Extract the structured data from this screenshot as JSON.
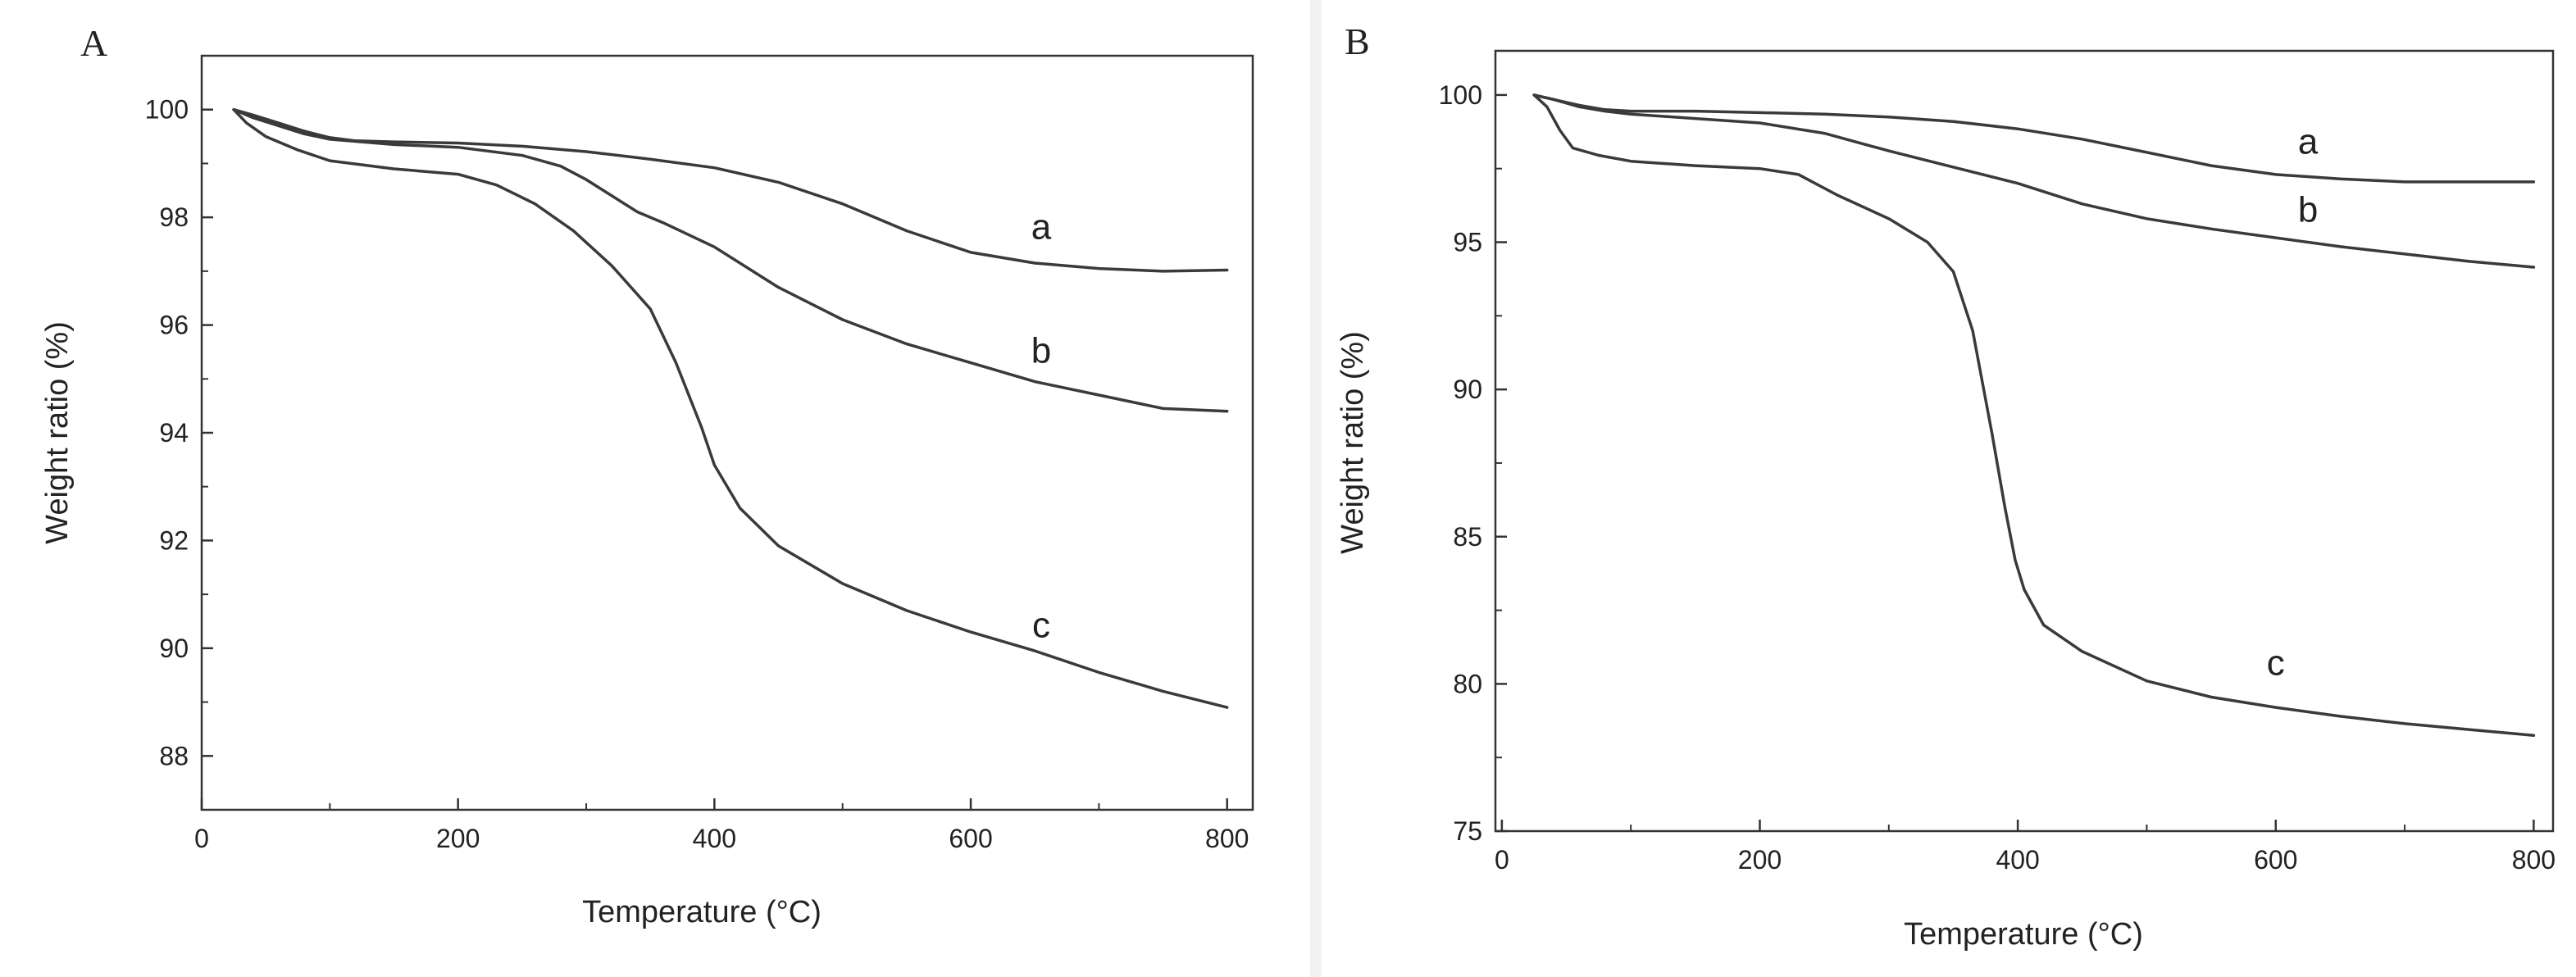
{
  "chart_data": [
    {
      "panel": "A",
      "type": "line",
      "xlabel": "Temperature (°C)",
      "ylabel": "Weight ratio (%)",
      "xlim": [
        0,
        820
      ],
      "ylim": [
        87,
        101
      ],
      "xticks": [
        0,
        200,
        400,
        600,
        800
      ],
      "yticks": [
        88,
        90,
        92,
        94,
        96,
        98,
        100
      ],
      "grid": false,
      "series": [
        {
          "name": "a",
          "x": [
            25,
            40,
            60,
            80,
            100,
            120,
            150,
            200,
            250,
            300,
            350,
            400,
            450,
            500,
            550,
            600,
            650,
            700,
            750,
            800
          ],
          "y": [
            100,
            99.9,
            99.75,
            99.6,
            99.48,
            99.42,
            99.4,
            99.38,
            99.32,
            99.22,
            99.08,
            98.92,
            98.65,
            98.25,
            97.75,
            97.35,
            97.15,
            97.05,
            97.0,
            97.02
          ]
        },
        {
          "name": "b",
          "x": [
            25,
            40,
            60,
            80,
            100,
            150,
            200,
            250,
            280,
            300,
            320,
            340,
            360,
            400,
            450,
            500,
            550,
            600,
            650,
            700,
            750,
            800
          ],
          "y": [
            100,
            99.85,
            99.7,
            99.55,
            99.45,
            99.35,
            99.3,
            99.15,
            98.95,
            98.7,
            98.4,
            98.1,
            97.9,
            97.45,
            96.7,
            96.1,
            95.65,
            95.3,
            94.95,
            94.7,
            94.45,
            94.4
          ]
        },
        {
          "name": "c",
          "x": [
            25,
            35,
            50,
            75,
            100,
            150,
            200,
            230,
            260,
            290,
            320,
            350,
            370,
            390,
            400,
            420,
            450,
            500,
            550,
            600,
            650,
            700,
            750,
            800
          ],
          "y": [
            100,
            99.75,
            99.5,
            99.25,
            99.05,
            98.9,
            98.8,
            98.6,
            98.25,
            97.75,
            97.1,
            96.3,
            95.3,
            94.1,
            93.4,
            92.6,
            91.9,
            91.2,
            90.7,
            90.3,
            89.95,
            89.55,
            89.2,
            88.9
          ]
        }
      ],
      "labels": [
        {
          "text": "a",
          "x": 655,
          "y": 97.6
        },
        {
          "text": "b",
          "x": 655,
          "y": 95.3
        },
        {
          "text": "c",
          "x": 655,
          "y": 90.2
        }
      ]
    },
    {
      "panel": "B",
      "type": "line",
      "xlabel": "Temperature (°C)",
      "ylabel": "Weight ratio (%)",
      "xlim": [
        -5,
        815
      ],
      "ylim": [
        75,
        101.5
      ],
      "xticks": [
        0,
        200,
        400,
        600,
        800
      ],
      "yticks": [
        75,
        80,
        85,
        90,
        95,
        100
      ],
      "grid": false,
      "series": [
        {
          "name": "a",
          "x": [
            25,
            40,
            60,
            80,
            100,
            150,
            200,
            250,
            300,
            350,
            400,
            450,
            500,
            550,
            600,
            650,
            700,
            750,
            800
          ],
          "y": [
            100,
            99.85,
            99.65,
            99.5,
            99.45,
            99.45,
            99.4,
            99.35,
            99.25,
            99.1,
            98.85,
            98.5,
            98.05,
            97.6,
            97.3,
            97.15,
            97.05,
            97.05,
            97.05
          ]
        },
        {
          "name": "b",
          "x": [
            25,
            40,
            60,
            80,
            100,
            150,
            200,
            250,
            300,
            350,
            400,
            450,
            500,
            550,
            600,
            650,
            700,
            750,
            800
          ],
          "y": [
            100,
            99.85,
            99.6,
            99.45,
            99.35,
            99.2,
            99.05,
            98.7,
            98.1,
            97.55,
            97.0,
            96.3,
            95.8,
            95.45,
            95.15,
            94.85,
            94.6,
            94.35,
            94.15
          ]
        },
        {
          "name": "c",
          "x": [
            25,
            35,
            45,
            55,
            75,
            100,
            150,
            200,
            230,
            260,
            300,
            330,
            350,
            365,
            380,
            390,
            398,
            405,
            420,
            450,
            500,
            550,
            600,
            650,
            700,
            750,
            800
          ],
          "y": [
            100,
            99.6,
            98.8,
            98.2,
            97.95,
            97.75,
            97.6,
            97.5,
            97.3,
            96.6,
            95.8,
            95.0,
            94.0,
            92.0,
            88.5,
            86.0,
            84.2,
            83.2,
            82.0,
            81.1,
            80.1,
            79.55,
            79.2,
            78.9,
            78.65,
            78.45,
            78.25
          ]
        }
      ],
      "labels": [
        {
          "text": "a",
          "x": 625,
          "y": 98.0
        },
        {
          "text": "b",
          "x": 625,
          "y": 95.7
        },
        {
          "text": "c",
          "x": 600,
          "y": 80.3
        }
      ]
    }
  ]
}
